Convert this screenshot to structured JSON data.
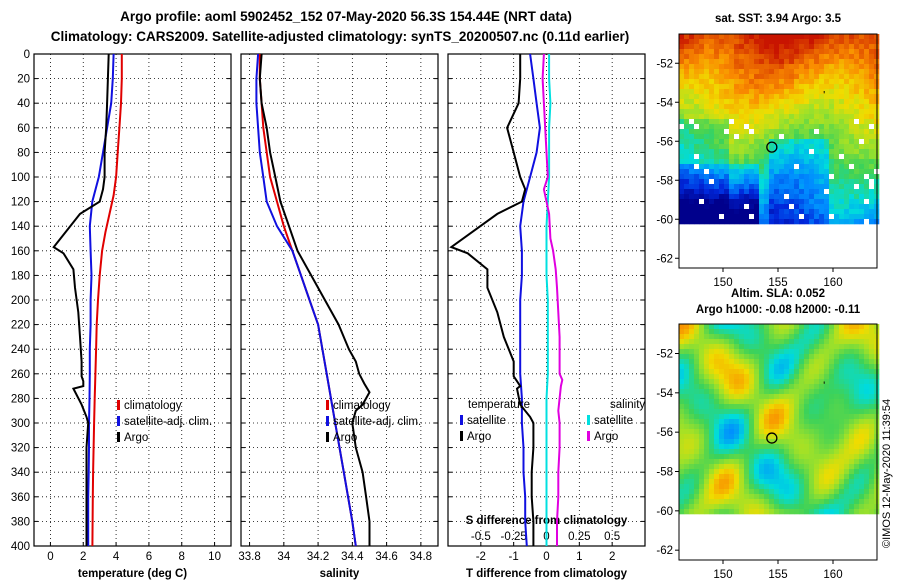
{
  "header": {
    "line1": "Argo profile: aoml 5902452_152 07-May-2020 56.3S 154.44E (NRT data)",
    "line2": "Climatology: CARS2009. Satellite-adjusted climatology: synTS_20200507.nc (0.11d earlier)"
  },
  "watermark": "©IMOS 12-May-2020 11:39:54",
  "colors": {
    "argo": "#000000",
    "climatology": "#e00000",
    "satellite": "#1010e0",
    "salinity_satellite": "#00e0e0",
    "salinity_argo": "#e000e0"
  },
  "chart_data": [
    {
      "type": "line",
      "title": "",
      "xlabel": "temperature (deg C)",
      "ylabel": "",
      "xlim": [
        -1,
        11
      ],
      "ylim": [
        400,
        0
      ],
      "xticks": [
        "0",
        "2",
        "4",
        "6",
        "8",
        "10"
      ],
      "xtick_values": [
        0,
        2,
        4,
        6,
        8,
        10
      ],
      "yticks": [
        "0",
        "20",
        "40",
        "60",
        "80",
        "100",
        "120",
        "140",
        "160",
        "180",
        "200",
        "220",
        "240",
        "260",
        "280",
        "300",
        "320",
        "340",
        "360",
        "380",
        "400"
      ],
      "legend": [
        "climatology",
        "satellite-adj. clim.",
        "Argo"
      ],
      "legend_placement": "bottom-right",
      "series": [
        {
          "name": "climatology",
          "color": "#e00000",
          "x": [
            4.35,
            4.35,
            4.3,
            4.2,
            4.1,
            4.0,
            3.85,
            3.6,
            3.35,
            3.15,
            3.0,
            2.9,
            2.82,
            2.78,
            2.74,
            2.7,
            2.66,
            2.63,
            2.6,
            2.58,
            2.56
          ],
          "y": [
            0,
            20,
            40,
            60,
            80,
            100,
            115,
            130,
            145,
            160,
            180,
            200,
            220,
            240,
            260,
            280,
            300,
            320,
            340,
            360,
            400
          ]
        },
        {
          "name": "satellite-adj. clim.",
          "color": "#1010e0",
          "x": [
            3.85,
            3.8,
            3.7,
            3.45,
            3.2,
            2.95,
            2.55,
            2.4,
            2.45,
            2.5,
            2.45,
            2.45,
            2.4,
            2.4,
            2.38,
            2.35,
            2.35,
            2.33,
            2.3,
            2.3,
            2.3
          ],
          "y": [
            0,
            20,
            40,
            60,
            80,
            100,
            120,
            140,
            160,
            180,
            200,
            220,
            240,
            260,
            280,
            300,
            320,
            340,
            360,
            380,
            400
          ]
        },
        {
          "name": "Argo",
          "color": "#000000",
          "x": [
            3.55,
            3.5,
            3.45,
            3.4,
            3.3,
            3.3,
            3.2,
            3.0,
            1.8,
            0.2,
            0.8,
            1.4,
            1.5,
            1.7,
            1.8,
            1.9,
            1.9,
            2.0,
            2.0,
            1.4,
            1.9,
            2.2,
            2.3,
            2.2,
            2.2,
            2.2,
            2.2,
            2.2
          ],
          "y": [
            0,
            20,
            40,
            60,
            80,
            100,
            110,
            120,
            130,
            157,
            162,
            175,
            190,
            210,
            230,
            250,
            262,
            266,
            270,
            272,
            285,
            295,
            300,
            320,
            340,
            360,
            380,
            400
          ]
        }
      ]
    },
    {
      "type": "line",
      "title": "",
      "xlabel": "salinity",
      "ylabel": "",
      "xlim": [
        33.75,
        34.9
      ],
      "ylim": [
        400,
        0
      ],
      "xticks": [
        "33.8",
        "34",
        "34.2",
        "34.4",
        "34.6",
        "34.8"
      ],
      "xtick_values": [
        33.8,
        34.0,
        34.2,
        34.4,
        34.6,
        34.8
      ],
      "legend": [
        "climatology",
        "satellite-adj. clim.",
        "Argo"
      ],
      "legend_placement": "bottom-right",
      "series": [
        {
          "name": "climatology",
          "color": "#e00000",
          "x": [
            33.86,
            33.86,
            33.87,
            33.88,
            33.9,
            33.92,
            33.96,
            34.0,
            34.05,
            34.1,
            34.15,
            34.2,
            34.25,
            34.3,
            34.35,
            34.4,
            34.42
          ],
          "y": [
            0,
            20,
            40,
            60,
            80,
            100,
            120,
            140,
            160,
            180,
            200,
            220,
            260,
            300,
            340,
            380,
            400
          ]
        },
        {
          "name": "satellite-adj. clim.",
          "color": "#1010e0",
          "x": [
            33.85,
            33.84,
            33.84,
            33.85,
            33.86,
            33.88,
            33.9,
            33.96,
            34.05,
            34.1,
            34.15,
            34.2,
            34.25,
            34.3,
            34.35,
            34.4,
            34.42
          ],
          "y": [
            0,
            20,
            40,
            60,
            80,
            100,
            120,
            140,
            160,
            180,
            200,
            220,
            260,
            300,
            340,
            380,
            400
          ]
        },
        {
          "name": "Argo",
          "color": "#000000",
          "x": [
            33.87,
            33.86,
            33.87,
            33.9,
            33.92,
            33.95,
            33.98,
            34.03,
            34.08,
            34.16,
            34.24,
            34.32,
            34.38,
            34.42,
            34.44,
            34.47,
            34.5,
            34.46,
            34.42,
            34.4,
            34.42,
            34.46,
            34.48,
            34.5,
            34.5
          ],
          "y": [
            0,
            20,
            40,
            60,
            80,
            100,
            120,
            140,
            160,
            180,
            200,
            220,
            240,
            250,
            260,
            268,
            275,
            285,
            290,
            300,
            320,
            340,
            360,
            380,
            400
          ]
        }
      ]
    },
    {
      "type": "line",
      "title": "",
      "xlabel": "T difference from climatology",
      "xlabel_top": "S difference from climatology",
      "ylabel": "",
      "xlim": [
        -3,
        3
      ],
      "xlim_top": [
        -0.75,
        0.75
      ],
      "ylim": [
        400,
        0
      ],
      "xticks": [
        "-2",
        "-1",
        "0",
        "1",
        "2"
      ],
      "xtick_values": [
        -2,
        -1,
        0,
        1,
        2
      ],
      "xticks_top": [
        "-0.5",
        "-0.25",
        "0",
        "0.25",
        "0.5"
      ],
      "xtick_top_values": [
        -0.5,
        -0.25,
        0,
        0.25,
        0.5
      ],
      "legend_groups": [
        {
          "title": "temperature",
          "items": [
            "satellite",
            "Argo"
          ]
        },
        {
          "title": "salinity",
          "items": [
            "satellite",
            "Argo"
          ]
        }
      ],
      "legend_placement": "bottom",
      "series": [
        {
          "name": "temperature satellite",
          "color": "#1010e0",
          "axis": "T",
          "x": [
            -0.5,
            -0.4,
            -0.3,
            -0.2,
            -0.3,
            -0.5,
            -0.7,
            -0.8,
            -0.75,
            -0.75,
            -0.8,
            -0.8,
            -0.8,
            -0.8,
            -0.75,
            -0.75,
            -0.7,
            -0.7,
            -0.65,
            -0.65,
            -0.6
          ],
          "y": [
            0,
            20,
            40,
            60,
            80,
            100,
            120,
            140,
            160,
            180,
            200,
            220,
            240,
            260,
            280,
            300,
            320,
            340,
            360,
            380,
            400
          ]
        },
        {
          "name": "temperature Argo",
          "color": "#000000",
          "axis": "T",
          "x": [
            -0.8,
            -0.8,
            -0.85,
            -1.2,
            -1.0,
            -0.8,
            -0.65,
            -0.75,
            -1.5,
            -2.9,
            -2.4,
            -1.8,
            -1.8,
            -1.5,
            -1.3,
            -1.0,
            -1.0,
            -0.9,
            -0.8,
            -0.9,
            -0.8,
            -0.5,
            -0.4,
            -0.4,
            -0.45,
            -0.45,
            -0.4,
            -0.4
          ],
          "y": [
            0,
            20,
            40,
            60,
            80,
            100,
            110,
            120,
            130,
            157,
            162,
            175,
            190,
            210,
            230,
            250,
            262,
            266,
            270,
            272,
            285,
            295,
            300,
            320,
            340,
            360,
            380,
            400
          ]
        },
        {
          "name": "salinity satellite",
          "color": "#00e0e0",
          "axis": "S",
          "x": [
            0.02,
            0.02,
            0.03,
            0.02,
            0.02,
            0.02,
            0.01,
            0.0,
            0.0,
            0.0,
            0.01,
            0.01,
            0.01,
            0.01,
            0.0,
            0.0,
            0.0,
            0.0,
            0.0,
            0.0,
            0.0
          ],
          "y": [
            0,
            20,
            40,
            60,
            80,
            100,
            120,
            140,
            160,
            180,
            200,
            220,
            240,
            260,
            280,
            300,
            320,
            340,
            360,
            380,
            400
          ]
        },
        {
          "name": "salinity Argo",
          "color": "#e000e0",
          "axis": "S",
          "x": [
            -0.02,
            -0.03,
            -0.02,
            -0.01,
            0.0,
            0.01,
            -0.02,
            0.0,
            0.02,
            0.03,
            0.05,
            0.07,
            0.08,
            0.09,
            0.1,
            0.1,
            0.1,
            0.12,
            0.11,
            0.1,
            0.09,
            0.1,
            0.1,
            0.1,
            0.09,
            0.09,
            0.08,
            0.08
          ],
          "y": [
            0,
            20,
            40,
            60,
            80,
            100,
            110,
            120,
            130,
            150,
            160,
            175,
            190,
            210,
            230,
            250,
            260,
            265,
            270,
            280,
            290,
            300,
            310,
            320,
            340,
            360,
            380,
            400
          ]
        }
      ]
    },
    {
      "type": "heatmap",
      "title": "sat. SST: 3.94 Argo: 3.5",
      "xlim": [
        146,
        164
      ],
      "ylim": [
        -62.5,
        -50.5
      ],
      "xticks": [
        "150",
        "155",
        "160"
      ],
      "xtick_values": [
        150,
        155,
        160
      ],
      "yticks": [
        "-52",
        "-54",
        "-56",
        "-58",
        "-60",
        "-62"
      ],
      "ytick_values": [
        -52,
        -54,
        -56,
        -58,
        -60,
        -62
      ],
      "data_extent_lat": [
        -60,
        -50.5
      ],
      "float_position": {
        "lon": 154.44,
        "lat": -56.3
      }
    },
    {
      "type": "heatmap",
      "title_line1": "Altim. SLA: 0.052",
      "title_line2": "Argo h1000: -0.08 h2000: -0.11",
      "xlim": [
        146,
        164
      ],
      "ylim": [
        -62.5,
        -50.5
      ],
      "xticks": [
        "150",
        "155",
        "160"
      ],
      "xtick_values": [
        150,
        155,
        160
      ],
      "yticks": [
        "-52",
        "-54",
        "-56",
        "-58",
        "-60",
        "-62"
      ],
      "ytick_values": [
        -52,
        -54,
        -56,
        -58,
        -60,
        -62
      ],
      "data_extent_lat": [
        -60,
        -50.5
      ],
      "float_position": {
        "lon": 154.44,
        "lat": -56.3
      }
    }
  ]
}
